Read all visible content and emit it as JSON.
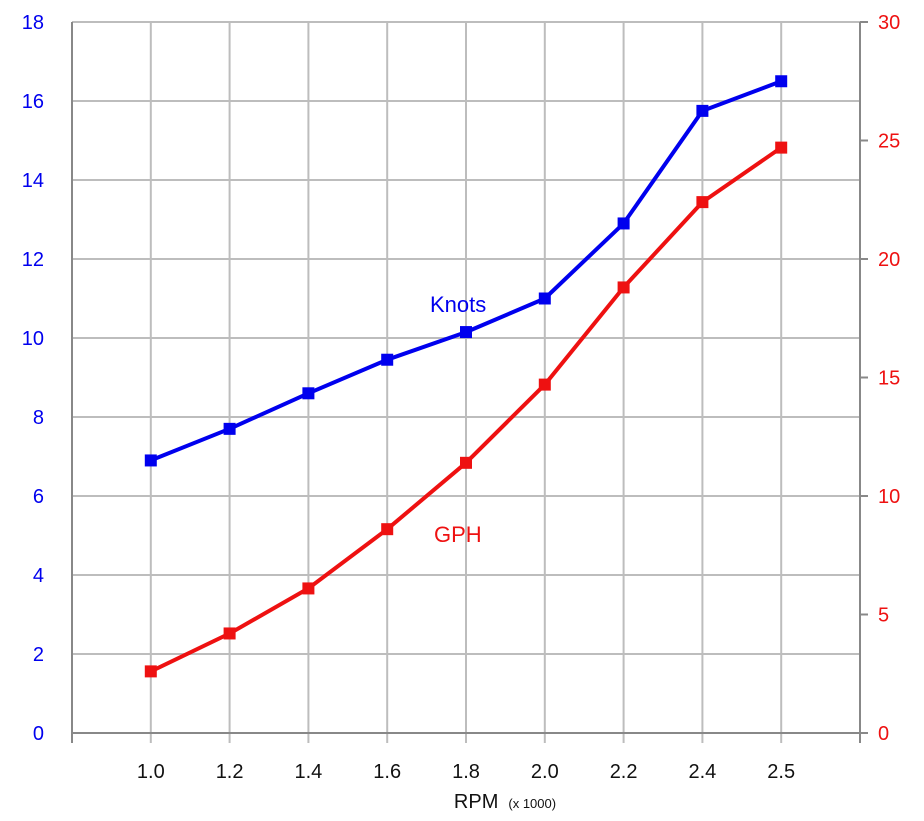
{
  "chart_data": {
    "type": "line",
    "x": [
      1.0,
      1.2,
      1.4,
      1.6,
      1.8,
      2.0,
      2.2,
      2.4,
      2.5
    ],
    "x_tick_labels": [
      "1.0",
      "1.2",
      "1.4",
      "1.6",
      "1.8",
      "2.0",
      "2.2",
      "2.4",
      "2.5"
    ],
    "xlabel": "RPM",
    "xlabel_unit": "(x 1000)",
    "title": "",
    "grid": true,
    "y_left": {
      "ylim": [
        0,
        18
      ],
      "ticks": [
        0,
        2,
        4,
        6,
        8,
        10,
        12,
        14,
        16,
        18
      ],
      "color": "#0000ee"
    },
    "y_right": {
      "ylim": [
        0,
        30
      ],
      "ticks": [
        0,
        5,
        10,
        15,
        20,
        25,
        30
      ],
      "color": "#ee1111"
    },
    "series": [
      {
        "name": "Knots",
        "axis": "left",
        "color": "#0000ee",
        "values": [
          6.9,
          7.7,
          8.6,
          9.45,
          10.15,
          11.0,
          12.9,
          15.75,
          16.5
        ]
      },
      {
        "name": "GPH",
        "axis": "right",
        "color": "#ee1111",
        "values": [
          2.6,
          4.2,
          6.1,
          8.6,
          11.4,
          14.7,
          18.8,
          22.4,
          24.7
        ]
      }
    ]
  }
}
